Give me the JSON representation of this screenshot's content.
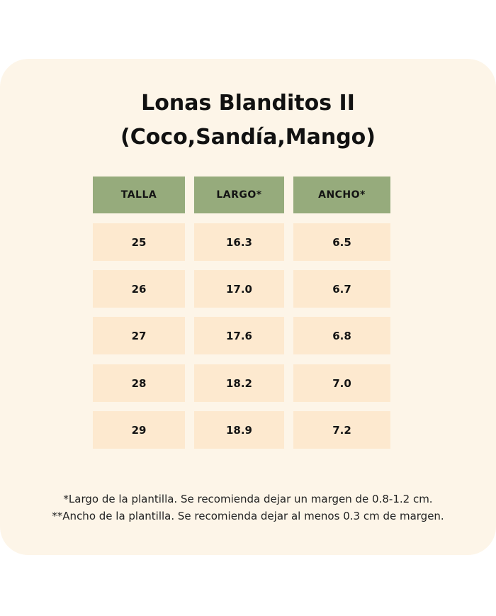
{
  "title_line1": "Lonas Blanditos II",
  "title_line2": "(Coco,Sandía,Mango)",
  "table": {
    "headers": [
      "TALLA",
      "LARGO*",
      "ANCHO*"
    ],
    "rows": [
      [
        "25",
        "16.3",
        "6.5"
      ],
      [
        "26",
        "17.0",
        "6.7"
      ],
      [
        "27",
        "17.6",
        "6.8"
      ],
      [
        "28",
        "18.2",
        "7.0"
      ],
      [
        "29",
        "18.9",
        "7.2"
      ]
    ]
  },
  "notes": [
    "*Largo de la plantilla. Se recomienda dejar un margen de 0.8-1.2 cm.",
    "**Ancho de la plantilla. Se recomienda dejar al menos 0.3 cm de margen."
  ],
  "colors": {
    "background": "#fdf5e8",
    "header": "#96ab7c",
    "cell": "#fde9cf"
  }
}
